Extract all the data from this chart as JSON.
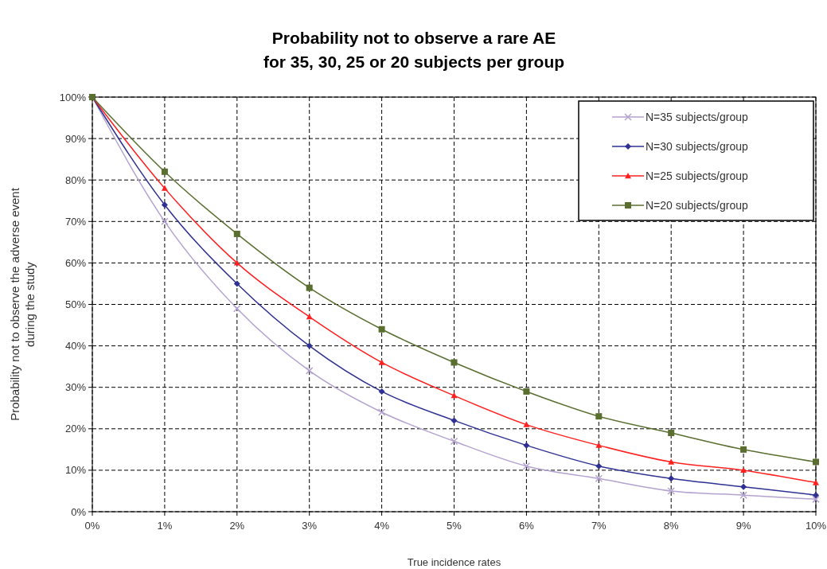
{
  "chart_data": {
    "type": "line",
    "title": "Probability not to observe a rare AE\nfor 35, 30, 25 or 20 subjects per group",
    "xlabel": "True incidence rates",
    "ylabel": "Probability not to observe the adverse event\nduring the study",
    "x": [
      0,
      1,
      2,
      3,
      4,
      5,
      6,
      7,
      8,
      9,
      10
    ],
    "xlim": [
      0,
      10
    ],
    "xticks": [
      {
        "value": 0,
        "label": "0%"
      },
      {
        "value": 1,
        "label": "1%"
      },
      {
        "value": 2,
        "label": "2%"
      },
      {
        "value": 3,
        "label": "3%"
      },
      {
        "value": 4,
        "label": "4%"
      },
      {
        "value": 5,
        "label": "5%"
      },
      {
        "value": 6,
        "label": "6%"
      },
      {
        "value": 7,
        "label": "7%"
      },
      {
        "value": 8,
        "label": "8%"
      },
      {
        "value": 9,
        "label": "9%"
      },
      {
        "value": 10,
        "label": "10%"
      }
    ],
    "ylim": [
      0,
      100
    ],
    "yticks": [
      {
        "value": 0,
        "label": "0%"
      },
      {
        "value": 10,
        "label": "10%"
      },
      {
        "value": 20,
        "label": "20%"
      },
      {
        "value": 30,
        "label": "30%"
      },
      {
        "value": 40,
        "label": "40%"
      },
      {
        "value": 50,
        "label": "50%"
      },
      {
        "value": 60,
        "label": "60%"
      },
      {
        "value": 70,
        "label": "70%"
      },
      {
        "value": 80,
        "label": "80%"
      },
      {
        "value": 90,
        "label": "90%"
      },
      {
        "value": 100,
        "label": "100%"
      }
    ],
    "grid": true,
    "legend": "top right",
    "series": [
      {
        "name": "N=35 subjects/group",
        "color": "#b3a2d0",
        "marker": "cross",
        "values": [
          100,
          70,
          49,
          34,
          24,
          17,
          11,
          8,
          5,
          4,
          3
        ]
      },
      {
        "name": "N=30 subjects/group",
        "color": "#2e3192",
        "marker": "diamond",
        "values": [
          100,
          74,
          55,
          40,
          29,
          22,
          16,
          11,
          8,
          6,
          4
        ]
      },
      {
        "name": "N=25 subjects/group",
        "color": "#ff2020",
        "marker": "triangle",
        "values": [
          100,
          78,
          60,
          47,
          36,
          28,
          21,
          16,
          12,
          10,
          7
        ]
      },
      {
        "name": "N=20 subjects/group",
        "color": "#5a6e2f",
        "marker": "square",
        "values": [
          100,
          82,
          67,
          54,
          44,
          36,
          29,
          23,
          19,
          15,
          12
        ]
      }
    ]
  }
}
